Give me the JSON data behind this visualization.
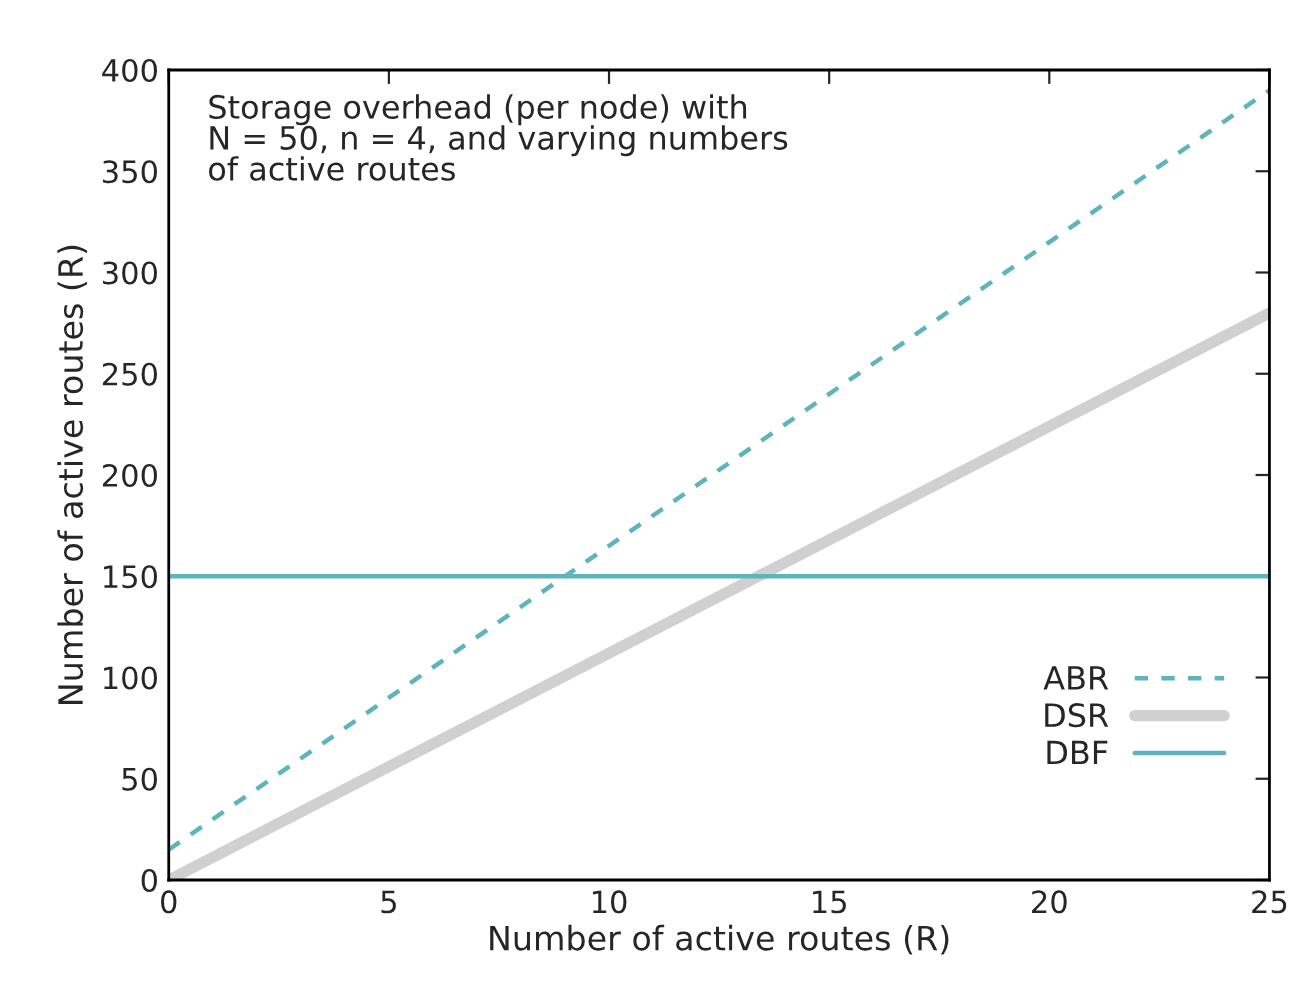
{
  "chart_data": {
    "type": "line",
    "x": [
      0,
      25
    ],
    "series": [
      {
        "name": "ABR",
        "color": "#5fb4bc",
        "values": [
          15,
          390
        ],
        "line_style": "dashed"
      },
      {
        "name": "DSR",
        "color": "#d0d0d0",
        "values": [
          0,
          280
        ],
        "line_style": "solid"
      },
      {
        "name": "DBF",
        "color": "#5fb4bc",
        "values": [
          150,
          150
        ],
        "line_style": "solid"
      }
    ],
    "xlabel": "Number of active routes (R)",
    "ylabel": "Number of active routes (R)",
    "annotations": [
      "Storage overhead (per node) with\nN = 50, n = 4, and varying numbers\nof active routes"
    ],
    "xlim": [
      0,
      25
    ],
    "ylim": [
      0,
      400
    ],
    "xticks": [
      0,
      5,
      10,
      15,
      20,
      25
    ],
    "yticks": [
      0,
      50,
      100,
      150,
      200,
      250,
      300,
      350,
      400
    ],
    "legend": "bottom right",
    "grid": false,
    "marker": "none"
  }
}
